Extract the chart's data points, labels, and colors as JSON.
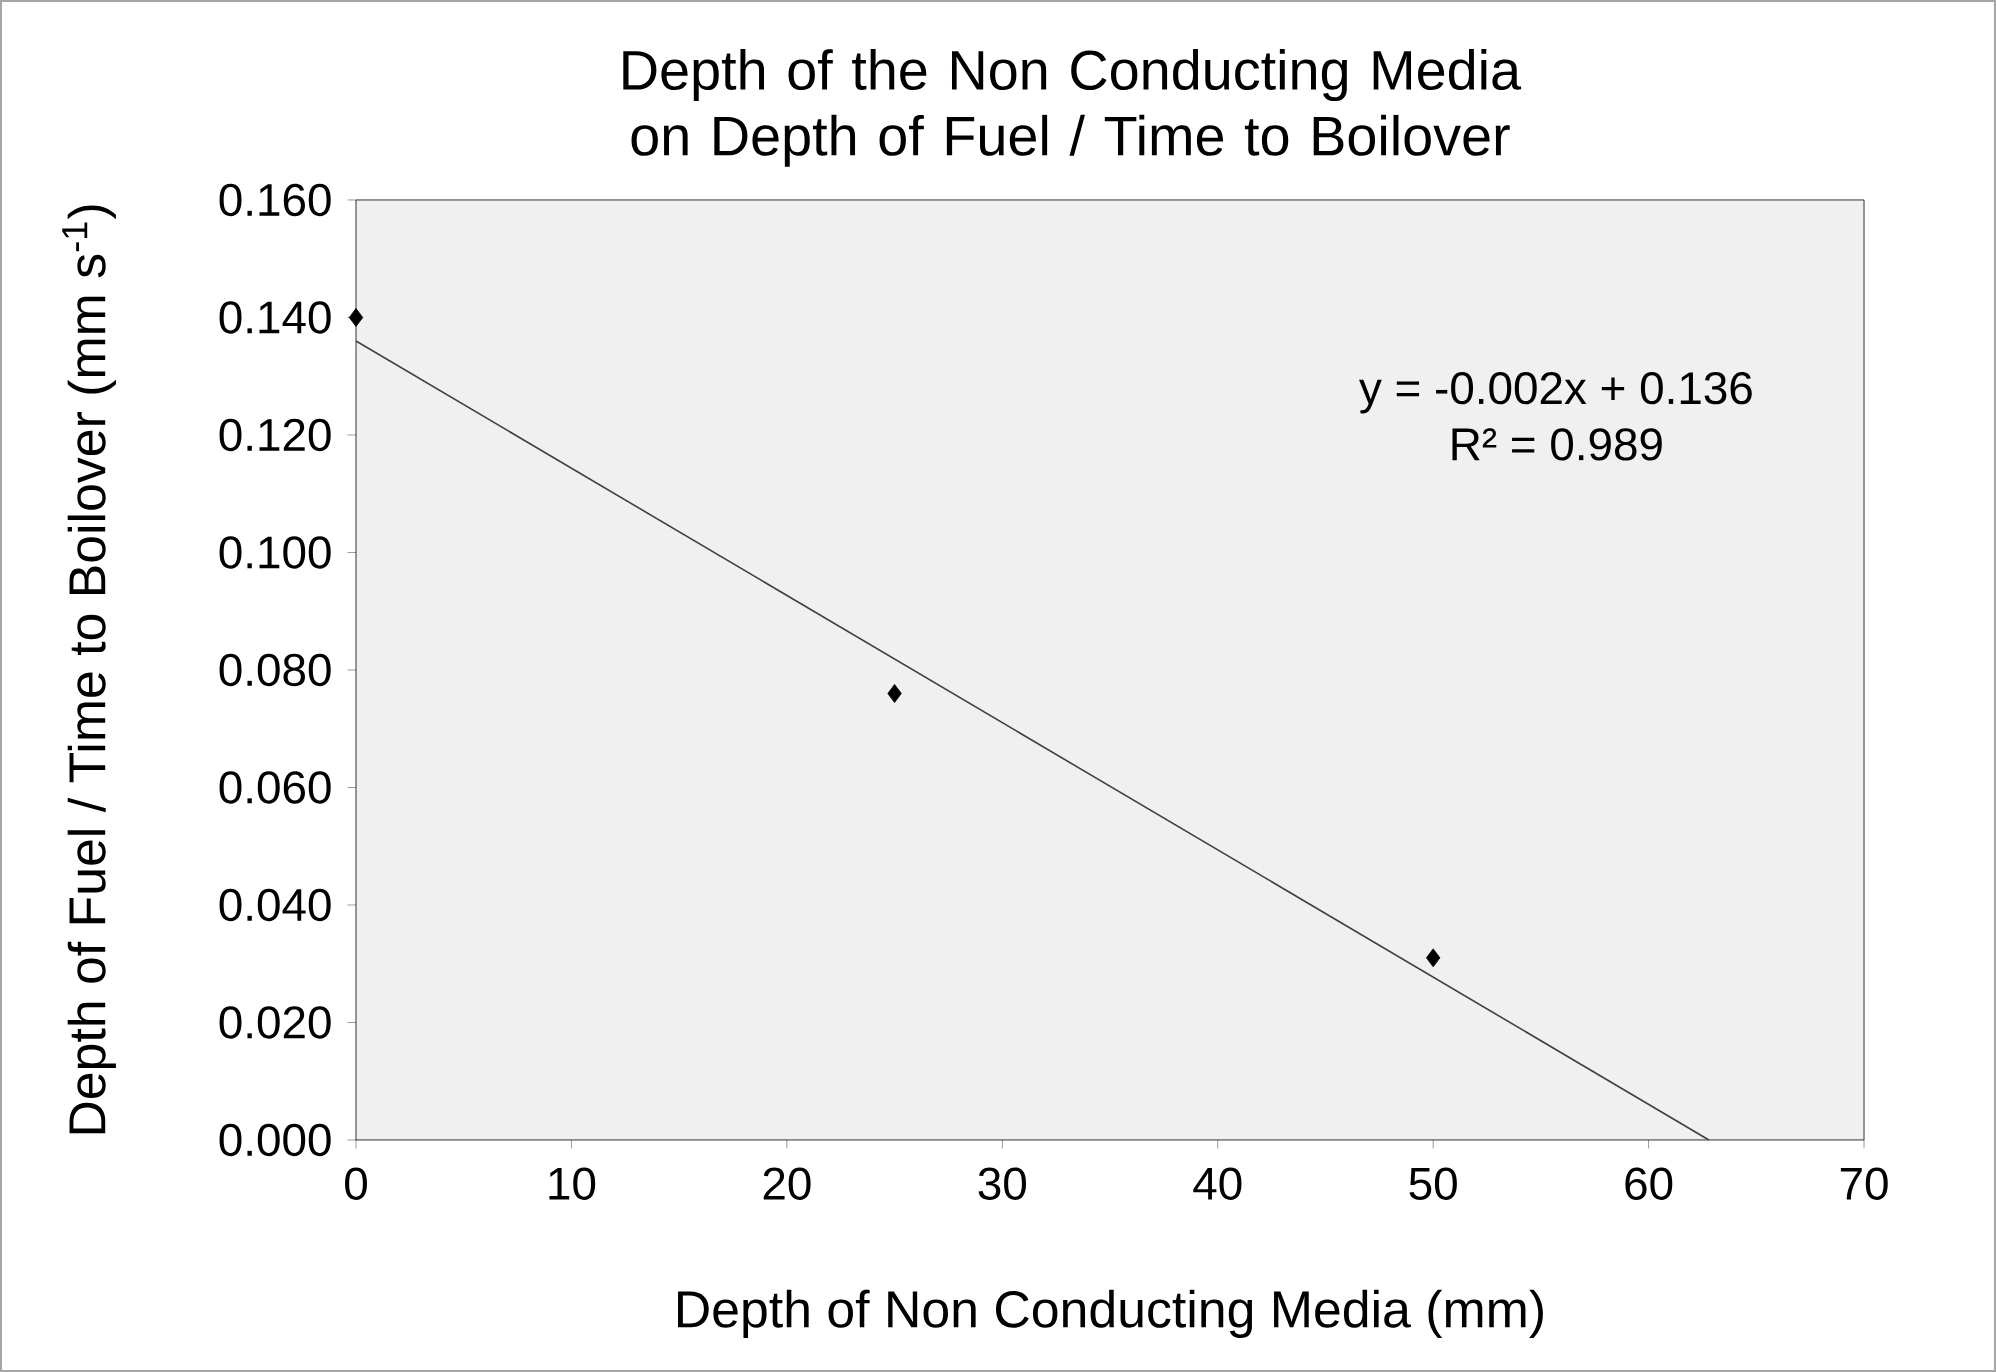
{
  "chart_data": {
    "type": "scatter",
    "title": "Depth of the Non Conducting Media on Depth of Fuel / Time to Boilover",
    "xlabel": "Depth of Non Conducting Media (mm)",
    "ylabel": "Depth of Fuel / Time to Boilover (mm s$^{-1}$)",
    "annotations": [
      "y = -0.002x + 0.136",
      "R² = 0.989"
    ],
    "series": [
      {
        "color": "#000000",
        "x": [
          0,
          25,
          50
        ],
        "values": [
          0.14,
          0.076,
          0.031
        ]
      },
      {
        "type": "line",
        "color": "#404040",
        "marker": "none",
        "line_style": "solid",
        "x": [
          0,
          62.8
        ],
        "values": [
          0.136,
          0.0
        ]
      }
    ],
    "xlim": [
      0,
      70
    ],
    "xticks": [
      0,
      10,
      20,
      30,
      40,
      50,
      60,
      70
    ],
    "ylim": [
      0,
      0.16
    ],
    "yticks": [
      {
        "value": 0,
        "label": "0.000"
      },
      {
        "value": 0.02,
        "label": "0.020"
      },
      {
        "value": 0.04,
        "label": "0.040"
      },
      {
        "value": 0.06,
        "label": "0.060"
      },
      {
        "value": 0.08,
        "label": "0.080"
      },
      {
        "value": 0.1,
        "label": "0.100"
      },
      {
        "value": 0.12,
        "label": "0.120"
      },
      {
        "value": 0.14,
        "label": "0.140"
      },
      {
        "value": 0.16,
        "label": "0.160"
      }
    ],
    "marker": "diamond",
    "grid": false
  }
}
